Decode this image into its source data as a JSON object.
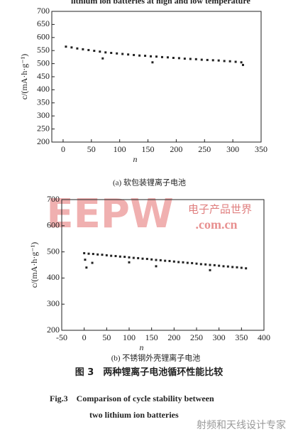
{
  "header_text": "lithium ion batteries at high and low temperature",
  "chart_data": [
    {
      "type": "scatter",
      "caption": "(a) 软包装锂离子电池",
      "xlabel": "n",
      "ylabel": "c/(mA·h·g⁻¹)",
      "xlim": [
        -20,
        350
      ],
      "xticks": [
        0,
        50,
        100,
        150,
        200,
        250,
        300,
        350
      ],
      "ylim": [
        200,
        700
      ],
      "yticks": [
        200,
        250,
        300,
        350,
        400,
        450,
        500,
        550,
        600,
        650,
        700
      ],
      "color": "#222222",
      "x": [
        5,
        15,
        25,
        35,
        45,
        55,
        65,
        75,
        85,
        95,
        105,
        115,
        125,
        135,
        145,
        155,
        165,
        175,
        185,
        195,
        205,
        215,
        225,
        235,
        245,
        255,
        265,
        275,
        285,
        295,
        305,
        315,
        70,
        158,
        318
      ],
      "values": [
        565,
        562,
        558,
        555,
        552,
        549,
        546,
        543,
        541,
        539,
        537,
        535,
        533,
        531,
        530,
        528,
        527,
        525,
        524,
        522,
        521,
        519,
        518,
        517,
        515,
        514,
        513,
        512,
        510,
        509,
        507,
        505,
        520,
        505,
        495
      ]
    },
    {
      "type": "scatter",
      "caption": "(b) 不锈钢外壳锂离子电池",
      "xlabel": "n",
      "ylabel": "c/(mA·h·g⁻¹)",
      "xlim": [
        -50,
        400
      ],
      "xticks": [
        -50,
        0,
        50,
        100,
        150,
        200,
        250,
        300,
        350,
        400
      ],
      "ylim": [
        200,
        700
      ],
      "yticks": [
        200,
        300,
        400,
        500,
        600,
        700
      ],
      "color": "#222222",
      "x": [
        0,
        10,
        20,
        30,
        40,
        50,
        60,
        70,
        80,
        90,
        100,
        110,
        120,
        130,
        140,
        150,
        160,
        170,
        180,
        190,
        200,
        210,
        220,
        230,
        240,
        250,
        260,
        270,
        280,
        290,
        300,
        310,
        320,
        330,
        340,
        350,
        360,
        2,
        5,
        18,
        100,
        160,
        280
      ],
      "values": [
        495,
        493,
        492,
        490,
        489,
        487,
        485,
        484,
        482,
        481,
        479,
        477,
        476,
        474,
        473,
        471,
        469,
        468,
        466,
        465,
        463,
        461,
        460,
        458,
        457,
        455,
        453,
        452,
        450,
        449,
        447,
        445,
        444,
        442,
        441,
        439,
        437,
        470,
        440,
        458,
        460,
        445,
        430
      ]
    }
  ],
  "figure_caption_cn": "图 3　两种锂离子电池循环性能比较",
  "figure_caption_en_1": "Fig.3　Comparison of cycle stability between",
  "figure_caption_en_2": "two lithium ion batteries",
  "watermarks": [
    "EEPW",
    "电子产品世界",
    ".com.cn",
    "射频和天线设计专家"
  ]
}
